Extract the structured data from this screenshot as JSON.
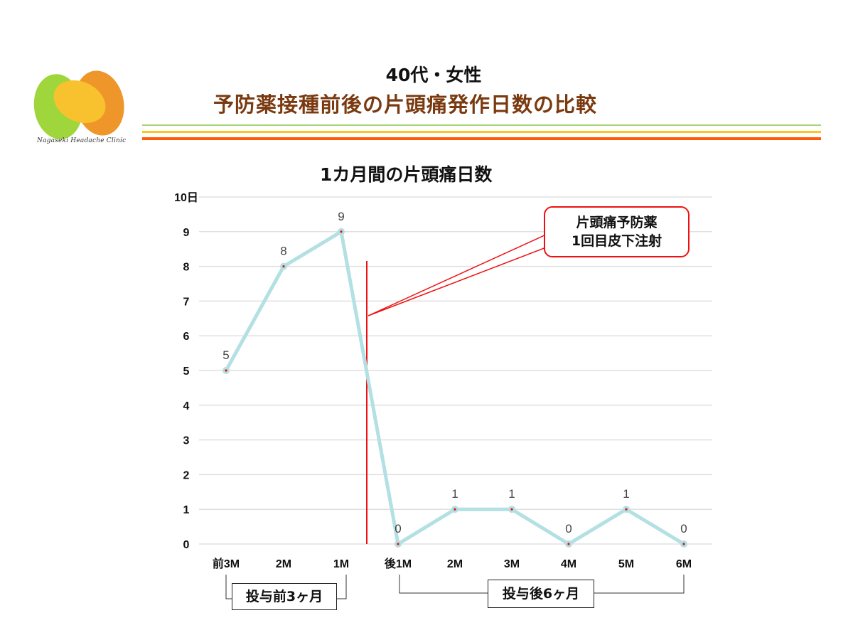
{
  "header": {
    "logo_text": "Nagaseki Headache Clinic",
    "title_line1": "40代・女性",
    "title_line2": "予防薬接種前後の片頭痛発作日数の比較",
    "rule_colors": [
      "#a6d477",
      "#ffc51a",
      "#ff5a0a"
    ]
  },
  "chart_data": {
    "type": "line",
    "title": "1カ月間の片頭痛日数",
    "xlabel": "",
    "ylabel": "日",
    "ylim": [
      0,
      10
    ],
    "yticks": [
      "0",
      "1",
      "2",
      "3",
      "4",
      "5",
      "6",
      "7",
      "8",
      "9",
      "10日"
    ],
    "grid": true,
    "categories": [
      "前3M",
      "2M",
      "1M",
      "後1M",
      "2M",
      "3M",
      "4M",
      "5M",
      "6M"
    ],
    "series": [
      {
        "name": "片頭痛日数",
        "color": "#b3e0e3",
        "marker_color": "#ee1111",
        "values": [
          5,
          8,
          9,
          0,
          1,
          1,
          0,
          1,
          0
        ]
      }
    ],
    "data_labels": [
      "5",
      "8",
      "9",
      "0",
      "1",
      "1",
      "0",
      "1",
      "0"
    ],
    "annotations": [
      {
        "type": "vertical-line",
        "between": [
          "1M",
          "後1M"
        ],
        "color": "#ee1111",
        "label_line1": "片頭痛予防薬",
        "label_line2": "1回目皮下注射"
      }
    ],
    "periods": [
      {
        "label": "投与前3ヶ月",
        "from": "前3M",
        "to": "1M"
      },
      {
        "label": "投与後6ヶ月",
        "from": "後1M",
        "to": "6M"
      }
    ]
  }
}
